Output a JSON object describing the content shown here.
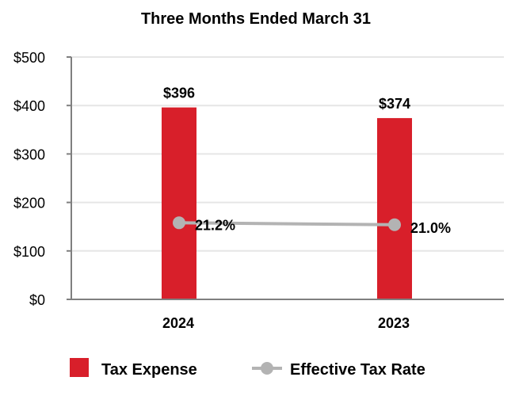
{
  "chart_data": {
    "type": "bar",
    "title": "Three Months Ended March 31",
    "categories": [
      "2024",
      "2023"
    ],
    "y_axis": {
      "ylim": [
        0,
        500
      ],
      "ticks": [
        0,
        100,
        200,
        300,
        400,
        500
      ],
      "tick_labels": [
        "$0",
        "$100",
        "$200",
        "$300",
        "$400",
        "$500"
      ]
    },
    "grid": true,
    "legend_position": "bottom",
    "series": [
      {
        "name": "Tax Expense",
        "kind": "bar",
        "color": "#d81f2a",
        "values": [
          396,
          374
        ],
        "labels": [
          "$396",
          "$374"
        ]
      },
      {
        "name": "Effective Tax Rate",
        "kind": "line",
        "color": "#b3b3b3",
        "values": [
          21.2,
          21.0
        ],
        "labels": [
          "21.2%",
          "21.0%"
        ],
        "plotted_on_left_axis_at": [
          158,
          154
        ]
      }
    ]
  }
}
